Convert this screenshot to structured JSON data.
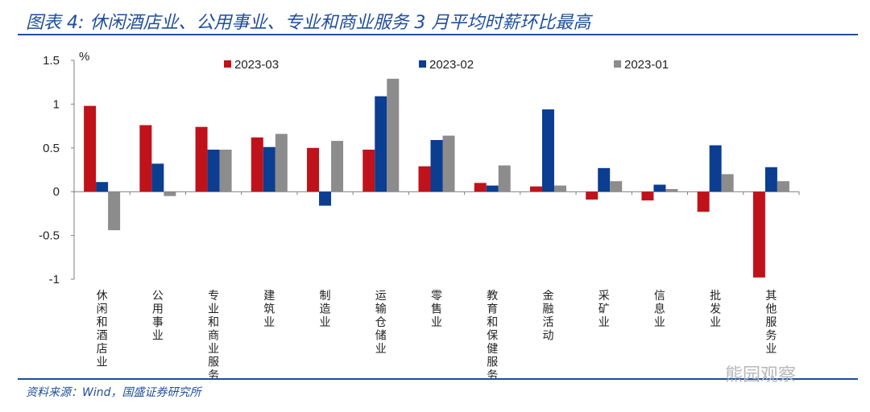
{
  "figure": {
    "title": "图表 4:  休闲酒店业、公用事业、专业和商业服务 3 月平均时薪环比最高",
    "source": "资料来源：Wind，国盛证券研究所",
    "watermark": "熊园观察"
  },
  "chart_data": {
    "type": "bar",
    "ylabel": "%",
    "ylim": [
      -1,
      1.5
    ],
    "yticks": [
      "1.5",
      "1",
      "0.5",
      "0",
      "-0.5",
      "-1"
    ],
    "ytick_values": [
      1.5,
      1,
      0.5,
      0,
      -0.5,
      -1
    ],
    "legend_position": "top",
    "categories": [
      "休闲和酒店业",
      "公用事业",
      "专业和商业服务",
      "建筑业",
      "制造业",
      "运输仓储业",
      "零售业",
      "教育和保健服务",
      "金融活动",
      "采矿业",
      "信息业",
      "批发业",
      "其他服务业"
    ],
    "series": [
      {
        "name": "2023-03",
        "color": "#c0121b",
        "values": [
          0.98,
          0.76,
          0.74,
          0.62,
          0.5,
          0.48,
          0.29,
          0.1,
          0.06,
          -0.09,
          -0.1,
          -0.23,
          -0.98
        ]
      },
      {
        "name": "2023-02",
        "color": "#0b3d91",
        "values": [
          0.11,
          0.32,
          0.48,
          0.51,
          -0.16,
          1.09,
          0.59,
          0.07,
          0.94,
          0.27,
          0.08,
          0.53,
          0.28
        ]
      },
      {
        "name": "2023-01",
        "color": "#8c8c8c",
        "values": [
          -0.44,
          -0.05,
          0.48,
          0.66,
          0.58,
          1.29,
          0.64,
          0.3,
          0.07,
          0.12,
          0.03,
          0.2,
          0.12
        ]
      }
    ]
  }
}
